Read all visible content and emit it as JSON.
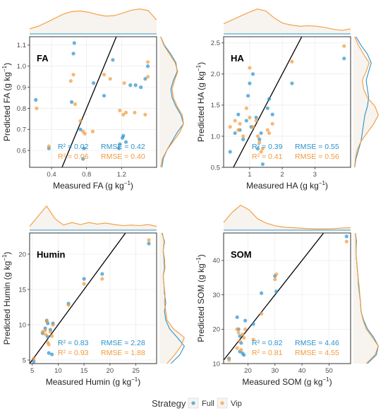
{
  "colors": {
    "full": "#2a93c9",
    "vip": "#f29a3a",
    "density_fill": "#f7f3ee",
    "panel_border": "#333333",
    "grid": "#e6e6e6",
    "tick_text": "#4d4d4d",
    "one_to_one": "#000000"
  },
  "legend": {
    "title": "Strategy",
    "items": [
      {
        "key": "full",
        "label": "Full"
      },
      {
        "key": "vip",
        "label": "Vip"
      }
    ]
  },
  "chart_data": [
    {
      "id": "fa",
      "type": "scatter",
      "title": "FA",
      "xlabel": "Measured FA (g kg",
      "ylabel": "Predicted FA (g kg",
      "unit_exp": "−1",
      "xlim": [
        0.15,
        1.6
      ],
      "ylim": [
        0.52,
        1.14
      ],
      "xticks": [
        {
          "v": 0.4,
          "label": "0.4"
        },
        {
          "v": 0.8,
          "label": "0.8"
        },
        {
          "v": 1.2,
          "label": "1.2"
        }
      ],
      "yticks": [
        {
          "v": 0.6,
          "label": "0.6"
        },
        {
          "v": 0.7,
          "label": "0.7"
        },
        {
          "v": 0.8,
          "label": "0.8"
        },
        {
          "v": 0.9,
          "label": "0.9"
        },
        {
          "v": 1.0,
          "label": "1.0"
        },
        {
          "v": 1.1,
          "label": "1.1"
        }
      ],
      "stats": {
        "full": {
          "r2": "R² = 0.02",
          "rmse": "RMSE = 0.42"
        },
        "vip": {
          "r2": "R² = 0.06",
          "rmse": "RMSE = 0.40"
        }
      },
      "series": [
        {
          "key": "full",
          "points": [
            [
              0.22,
              0.84
            ],
            [
              0.37,
              0.61
            ],
            [
              0.63,
              0.83
            ],
            [
              0.65,
              1.06
            ],
            [
              0.66,
              1.11
            ],
            [
              0.73,
              0.7
            ],
            [
              0.76,
              0.56
            ],
            [
              0.77,
              0.61
            ],
            [
              0.88,
              0.92
            ],
            [
              1.0,
              0.86
            ],
            [
              1.1,
              1.03
            ],
            [
              1.17,
              0.61
            ],
            [
              1.21,
              0.66
            ],
            [
              1.22,
              0.67
            ],
            [
              1.25,
              0.64
            ],
            [
              1.3,
              0.91
            ],
            [
              1.36,
              0.91
            ],
            [
              1.42,
              0.9
            ],
            [
              1.47,
              0.94
            ],
            [
              1.5,
              1.0
            ],
            [
              1.18,
              0.63
            ]
          ]
        },
        {
          "key": "vip",
          "points": [
            [
              0.23,
              0.8
            ],
            [
              0.37,
              0.62
            ],
            [
              0.62,
              0.93
            ],
            [
              0.65,
              0.96
            ],
            [
              0.67,
              0.82
            ],
            [
              0.73,
              0.74
            ],
            [
              0.76,
              0.69
            ],
            [
              0.78,
              0.68
            ],
            [
              0.87,
              0.69
            ],
            [
              1.0,
              0.96
            ],
            [
              1.07,
              0.94
            ],
            [
              1.18,
              0.79
            ],
            [
              1.22,
              0.77
            ],
            [
              1.25,
              0.78
            ],
            [
              1.35,
              0.78
            ],
            [
              1.47,
              0.77
            ],
            [
              1.5,
              1.02
            ],
            [
              1.5,
              0.95
            ],
            [
              1.23,
              0.92
            ]
          ]
        }
      ],
      "top_density": {
        "full": [
          0,
          0,
          0,
          0,
          0,
          0,
          0,
          0,
          0,
          0,
          0,
          0,
          0,
          0,
          0,
          0
        ],
        "vip": [
          0.2,
          0.3,
          0.45,
          0.62,
          0.78,
          0.88,
          0.9,
          0.85,
          0.76,
          0.7,
          0.72,
          0.82,
          0.93,
          0.98,
          0.92,
          0.55
        ]
      },
      "right_density": {
        "full": [
          0.1,
          0.15,
          0.3,
          0.5,
          0.7,
          0.95,
          0.85,
          0.65,
          0.5,
          0.45,
          0.55,
          0.7,
          0.65,
          0.45,
          0.2,
          0.05
        ],
        "vip": [
          0.05,
          0.12,
          0.3,
          0.55,
          0.8,
          0.95,
          0.9,
          0.7,
          0.55,
          0.5,
          0.6,
          0.72,
          0.62,
          0.4,
          0.18,
          0.05
        ]
      }
    },
    {
      "id": "ha",
      "type": "scatter",
      "title": "HA",
      "xlabel": "Measured HA (g kg",
      "ylabel": "Predicted HA (g kg",
      "unit_exp": "−1",
      "xlim": [
        0.2,
        4.1
      ],
      "ylim": [
        0.5,
        2.6
      ],
      "xticks": [
        {
          "v": 1,
          "label": "1"
        },
        {
          "v": 2,
          "label": "2"
        },
        {
          "v": 3,
          "label": "3"
        }
      ],
      "yticks": [
        {
          "v": 0.5,
          "label": "0.5"
        },
        {
          "v": 1.0,
          "label": "1.0"
        },
        {
          "v": 1.5,
          "label": "1.5"
        },
        {
          "v": 2.0,
          "label": "2.0"
        },
        {
          "v": 2.5,
          "label": "2.5"
        }
      ],
      "stats": {
        "full": {
          "r2": "R² = 0.39",
          "rmse": "RMSE = 0.55"
        },
        "vip": {
          "r2": "R² = 0.41",
          "rmse": "RMSE = 0.56"
        }
      },
      "series": [
        {
          "key": "full",
          "points": [
            [
              0.4,
              0.75
            ],
            [
              0.55,
              1.05
            ],
            [
              0.65,
              1.35
            ],
            [
              0.7,
              1.1
            ],
            [
              0.8,
              0.95
            ],
            [
              0.9,
              1.25
            ],
            [
              0.95,
              1.65
            ],
            [
              1.0,
              1.85
            ],
            [
              1.1,
              2.0
            ],
            [
              1.2,
              1.3
            ],
            [
              1.25,
              0.8
            ],
            [
              1.3,
              0.95
            ],
            [
              1.35,
              1.05
            ],
            [
              1.4,
              0.55
            ],
            [
              1.55,
              1.45
            ],
            [
              1.6,
              1.6
            ],
            [
              1.7,
              1.35
            ],
            [
              2.3,
              1.85
            ],
            [
              3.9,
              2.25
            ],
            [
              1.05,
              1.15
            ]
          ]
        },
        {
          "key": "vip",
          "points": [
            [
              0.4,
              1.15
            ],
            [
              0.55,
              1.25
            ],
            [
              0.65,
              1.1
            ],
            [
              0.7,
              1.2
            ],
            [
              0.8,
              1.0
            ],
            [
              0.9,
              1.45
            ],
            [
              1.0,
              2.1
            ],
            [
              1.1,
              1.15
            ],
            [
              1.2,
              1.25
            ],
            [
              1.25,
              1.0
            ],
            [
              1.3,
              0.9
            ],
            [
              1.35,
              0.75
            ],
            [
              1.4,
              0.8
            ],
            [
              1.55,
              1.1
            ],
            [
              1.6,
              1.05
            ],
            [
              1.7,
              1.2
            ],
            [
              2.3,
              2.2
            ],
            [
              3.9,
              2.45
            ],
            [
              1.0,
              1.3
            ]
          ]
        }
      ],
      "top_density": {
        "full": [
          0,
          0,
          0,
          0,
          0,
          0,
          0,
          0,
          0,
          0,
          0,
          0,
          0,
          0,
          0,
          0
        ],
        "vip": [
          0.4,
          0.55,
          0.7,
          0.85,
          0.98,
          0.9,
          0.62,
          0.42,
          0.35,
          0.3,
          0.32,
          0.3,
          0.25,
          0.18,
          0.14,
          0.2
        ]
      },
      "right_density": {
        "full": [
          0.05,
          0.1,
          0.2,
          0.3,
          0.35,
          0.4,
          0.45,
          0.55,
          0.6,
          0.55,
          0.5,
          0.6,
          0.7,
          0.55,
          0.3,
          0.1
        ],
        "vip": [
          0.05,
          0.08,
          0.15,
          0.3,
          0.55,
          0.8,
          0.98,
          0.85,
          0.55,
          0.4,
          0.35,
          0.5,
          0.62,
          0.4,
          0.2,
          0.05
        ]
      }
    },
    {
      "id": "humin",
      "type": "scatter",
      "title": "Humin",
      "xlabel": "Measured Humin (g kg",
      "ylabel": "Predicted Humin (g kg",
      "unit_exp": "−1",
      "xlim": [
        4.5,
        29
      ],
      "ylim": [
        4.5,
        23
      ],
      "xticks": [
        {
          "v": 5,
          "label": "5"
        },
        {
          "v": 10,
          "label": "10"
        },
        {
          "v": 15,
          "label": "15"
        },
        {
          "v": 20,
          "label": "20"
        },
        {
          "v": 25,
          "label": "25"
        }
      ],
      "yticks": [
        {
          "v": 5,
          "label": "5"
        },
        {
          "v": 10,
          "label": "10"
        },
        {
          "v": 15,
          "label": "15"
        },
        {
          "v": 20,
          "label": "20"
        }
      ],
      "stats": {
        "full": {
          "r2": "R² = 0.83",
          "rmse": "RMSE = 2.28"
        },
        "vip": {
          "r2": "R² = 0.93",
          "rmse": "RMSE = 1.88"
        }
      },
      "series": [
        {
          "key": "full",
          "points": [
            [
              5.3,
              4.8
            ],
            [
              7,
              8.8
            ],
            [
              7.5,
              9.5
            ],
            [
              7.8,
              10.6
            ],
            [
              8,
              8.3
            ],
            [
              8.2,
              6.0
            ],
            [
              8.5,
              9.3
            ],
            [
              8.8,
              5.8
            ],
            [
              9,
              10.2
            ],
            [
              12,
              13
            ],
            [
              15,
              16.5
            ],
            [
              18.5,
              17.2
            ],
            [
              27.5,
              21.5
            ],
            [
              8,
              10.2
            ]
          ]
        },
        {
          "key": "vip",
          "points": [
            [
              5.3,
              5.2
            ],
            [
              7,
              9.0
            ],
            [
              7.5,
              9.2
            ],
            [
              7.8,
              10.5
            ],
            [
              8,
              7.5
            ],
            [
              8.2,
              7.2
            ],
            [
              8.5,
              9.0
            ],
            [
              8.8,
              8.4
            ],
            [
              9,
              10.0
            ],
            [
              12,
              12.8
            ],
            [
              15,
              15.8
            ],
            [
              18.5,
              16.5
            ],
            [
              27.5,
              22.0
            ],
            [
              7.6,
              8.6
            ]
          ]
        }
      ],
      "top_density": {
        "full": [
          0,
          0,
          0,
          0,
          0,
          0,
          0,
          0,
          0,
          0,
          0,
          0,
          0,
          0,
          0,
          0
        ],
        "vip": [
          0.15,
          0.55,
          0.95,
          0.45,
          0.2,
          0.3,
          0.22,
          0.3,
          0.24,
          0.28,
          0.22,
          0.18,
          0.2,
          0.18,
          0.22,
          0.15
        ]
      },
      "right_density": {
        "full": [
          0.45,
          0.8,
          0.98,
          0.7,
          0.4,
          0.25,
          0.2,
          0.25,
          0.2,
          0.18,
          0.15,
          0.2,
          0.18,
          0.15,
          0.2,
          0.1
        ],
        "vip": [
          0.3,
          0.6,
          0.85,
          0.98,
          0.55,
          0.3,
          0.25,
          0.2,
          0.22,
          0.18,
          0.15,
          0.22,
          0.2,
          0.15,
          0.18,
          0.12
        ]
      }
    },
    {
      "id": "som",
      "type": "scatter",
      "title": "SOM",
      "xlabel": "Measured SOM (g kg",
      "ylabel": "Predicted SOM (g kg",
      "unit_exp": "−1",
      "xlim": [
        11,
        58
      ],
      "ylim": [
        10,
        48
      ],
      "xticks": [
        {
          "v": 20,
          "label": "20"
        },
        {
          "v": 30,
          "label": "30"
        },
        {
          "v": 40,
          "label": "40"
        },
        {
          "v": 50,
          "label": "50"
        }
      ],
      "yticks": [
        {
          "v": 10,
          "label": "10"
        },
        {
          "v": 20,
          "label": "20"
        },
        {
          "v": 30,
          "label": "30"
        },
        {
          "v": 40,
          "label": "40"
        }
      ],
      "stats": {
        "full": {
          "r2": "R² = 0.82",
          "rmse": "RMSE = 4.46"
        },
        "vip": {
          "r2": "R² = 0.81",
          "rmse": "RMSE = 4.55"
        }
      },
      "series": [
        {
          "key": "full",
          "points": [
            [
              13,
              11.5
            ],
            [
              16,
              23.5
            ],
            [
              16.5,
              20
            ],
            [
              17,
              18
            ],
            [
              17.5,
              16
            ],
            [
              18,
              13
            ],
            [
              18.5,
              12.5
            ],
            [
              19,
              22.5
            ],
            [
              22,
              21.5
            ],
            [
              25,
              30.5
            ],
            [
              30,
              35.5
            ],
            [
              30.5,
              31
            ],
            [
              56.5,
              47
            ],
            [
              17,
              13.5
            ]
          ]
        },
        {
          "key": "vip",
          "points": [
            [
              13,
              11
            ],
            [
              16,
              20
            ],
            [
              16.5,
              19
            ],
            [
              17,
              16.5
            ],
            [
              17.5,
              14
            ],
            [
              18,
              18.5
            ],
            [
              18.5,
              17.5
            ],
            [
              19,
              20
            ],
            [
              22,
              17
            ],
            [
              25,
              24.5
            ],
            [
              30,
              34.5
            ],
            [
              30.5,
              36
            ],
            [
              56.5,
              45.5
            ],
            [
              16,
              14.5
            ]
          ]
        }
      ],
      "top_density": {
        "full": [
          0,
          0,
          0,
          0,
          0,
          0,
          0,
          0,
          0,
          0,
          0,
          0,
          0,
          0,
          0,
          0
        ],
        "vip": [
          0.3,
          0.7,
          0.98,
          0.8,
          0.45,
          0.28,
          0.18,
          0.12,
          0.1,
          0.08,
          0.06,
          0.05,
          0.05,
          0.06,
          0.08,
          0.1
        ]
      },
      "right_density": {
        "full": [
          0.55,
          0.9,
          0.98,
          0.8,
          0.55,
          0.4,
          0.3,
          0.28,
          0.24,
          0.2,
          0.18,
          0.15,
          0.12,
          0.1,
          0.12,
          0.08
        ],
        "vip": [
          0.5,
          0.85,
          0.98,
          0.75,
          0.5,
          0.38,
          0.3,
          0.28,
          0.25,
          0.22,
          0.18,
          0.15,
          0.12,
          0.1,
          0.1,
          0.08
        ]
      }
    }
  ]
}
